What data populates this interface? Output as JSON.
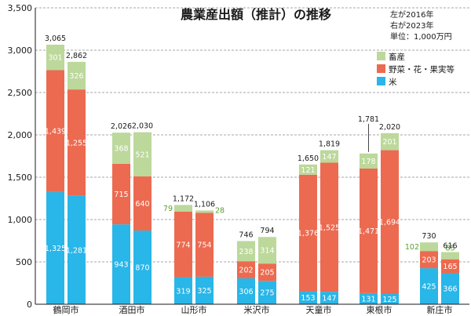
{
  "chart_data": {
    "type": "bar",
    "stacked": true,
    "title": "農業産出額（推計）の推移",
    "note_lines": [
      "左が2016年",
      "右が2023年",
      "単位：1,000万円"
    ],
    "years": [
      "2016",
      "2023"
    ],
    "categories": [
      "鶴岡市",
      "酒田市",
      "山形市",
      "米沢市",
      "天童市",
      "東根市",
      "新庄市"
    ],
    "ylim": [
      0,
      3500
    ],
    "yticks": [
      0,
      500,
      1000,
      1500,
      2000,
      2500,
      3000,
      3500
    ],
    "ytick_labels": [
      "0",
      "500",
      "1,000",
      "1,500",
      "2,000",
      "2,500",
      "3,000",
      "3,500"
    ],
    "series": [
      {
        "name": "米",
        "color": "#29b6e8",
        "label_color": "#ffffff",
        "values_2016": [
          1325,
          943,
          319,
          306,
          153,
          131,
          425
        ],
        "values_2023": [
          1281,
          870,
          325,
          275,
          147,
          125,
          366
        ],
        "labels_2016": [
          "1,325",
          "943",
          "319",
          "306",
          "153",
          "131",
          "425"
        ],
        "labels_2023": [
          "1,281",
          "870",
          "325",
          "275",
          "147",
          "125",
          "366"
        ]
      },
      {
        "name": "野菜・花・果実等",
        "color": "#ec6a50",
        "label_color": "#ffffff",
        "values_2016": [
          1439,
          715,
          774,
          202,
          1376,
          1471,
          203
        ],
        "values_2023": [
          1255,
          640,
          754,
          205,
          1525,
          1694,
          165
        ],
        "labels_2016": [
          "1,439",
          "715",
          "774",
          "202",
          "1,376",
          "1,471",
          "203"
        ],
        "labels_2023": [
          "1,255",
          "640",
          "754",
          "205",
          "1,525",
          "1,694",
          "165"
        ]
      },
      {
        "name": "畜産",
        "color": "#bcd89b",
        "label_color": "#ffffff",
        "values_2016": [
          301,
          368,
          79,
          238,
          121,
          178,
          102
        ],
        "values_2023": [
          326,
          521,
          28,
          314,
          147,
          201,
          85
        ],
        "labels_2016": [
          "301",
          "368",
          "79",
          "238",
          "121",
          "178",
          "102"
        ],
        "labels_2023": [
          "326",
          "521",
          "28",
          "314",
          "147",
          "201",
          "85"
        ]
      }
    ],
    "totals_2016": [
      "3,065",
      "2,026",
      "1,172",
      "746",
      "1,650",
      "1,781",
      "730"
    ],
    "totals_2023": [
      "2,862",
      "2,030",
      "1,106",
      "794",
      "1,819",
      "2,020",
      "616"
    ],
    "legend": [
      {
        "name": "畜産",
        "color": "#bcd89b"
      },
      {
        "name": "野菜・花・果実等",
        "color": "#ec6a50"
      },
      {
        "name": "米",
        "color": "#29b6e8"
      }
    ],
    "grid": "dashed"
  }
}
